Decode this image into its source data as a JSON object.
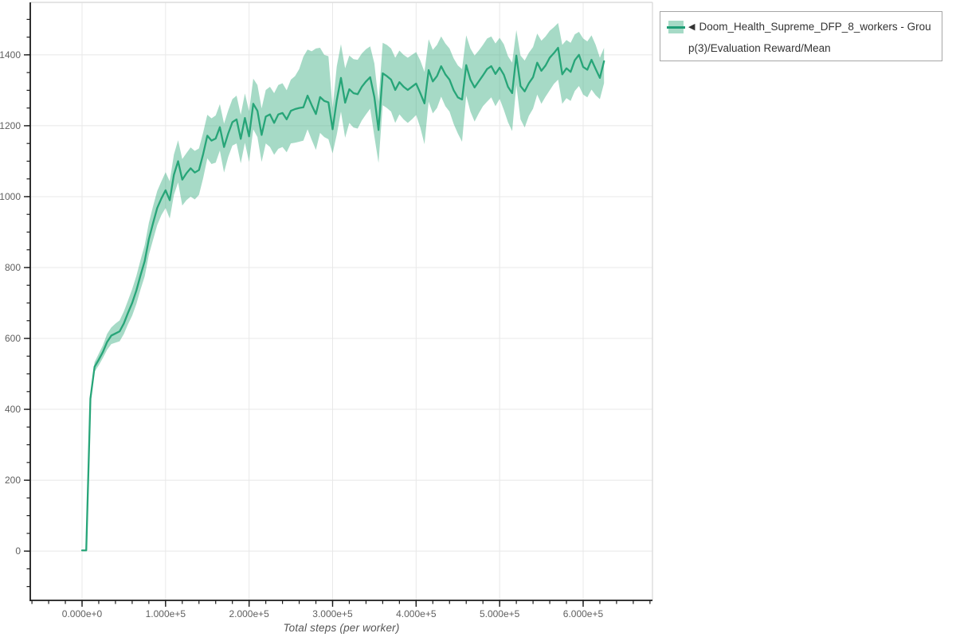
{
  "page": {
    "background": "#ffffff"
  },
  "legend": {
    "triangle_glyph": "◀",
    "label": "Doom_Health_Supreme_DFP_8_workers - Group(3)/Evaluation Reward/Mean",
    "swatch_line_color": "#1f9e76",
    "swatch_fill_color": "#a6dac6",
    "border_color": "#a6a6a6"
  },
  "chart_data": {
    "type": "line",
    "title": "",
    "xlabel": "Total steps (per worker)",
    "ylabel": "",
    "grid": true,
    "legend_position": "top-right-outside",
    "xlim": [
      -62000,
      683000
    ],
    "ylim": [
      -139,
      1548
    ],
    "x_tick_values": [
      0,
      100000,
      200000,
      300000,
      400000,
      500000,
      600000
    ],
    "x_tick_labels": [
      "0.000e+0",
      "1.000e+5",
      "2.000e+5",
      "3.000e+5",
      "4.000e+5",
      "5.000e+5",
      "6.000e+5"
    ],
    "x_minor_step": 20000,
    "y_tick_values": [
      0,
      200,
      400,
      600,
      800,
      1000,
      1200,
      1400
    ],
    "y_minor_step": 50,
    "colors": {
      "line": "#27a578",
      "band": "#2aa876",
      "band_opacity": 0.42,
      "grid": "#e8e8e8",
      "axis": "#1a1a1a",
      "plot_border": "#dcdcdc",
      "tick_label": "#5f5f5f"
    },
    "series": [
      {
        "name": "Doom_Health_Supreme_DFP_8_workers - Group(3)/Evaluation Reward/Mean",
        "points_format": [
          "step",
          "low",
          "mean",
          "high"
        ],
        "points": [
          [
            0,
            2,
            2,
            2
          ],
          [
            5000,
            2,
            2,
            3
          ],
          [
            10000,
            420,
            430,
            442
          ],
          [
            15000,
            506,
            520,
            533
          ],
          [
            20000,
            524,
            540,
            557
          ],
          [
            25000,
            545,
            562,
            581
          ],
          [
            30000,
            568,
            590,
            613
          ],
          [
            35000,
            584,
            608,
            631
          ],
          [
            40000,
            588,
            614,
            642
          ],
          [
            45000,
            592,
            620,
            651
          ],
          [
            50000,
            612,
            642,
            676
          ],
          [
            55000,
            640,
            672,
            707
          ],
          [
            60000,
            664,
            700,
            739
          ],
          [
            65000,
            697,
            735,
            776
          ],
          [
            70000,
            738,
            778,
            821
          ],
          [
            75000,
            775,
            818,
            863
          ],
          [
            80000,
            836,
            880,
            926
          ],
          [
            85000,
            878,
            925,
            973
          ],
          [
            90000,
            920,
            968,
            1016
          ],
          [
            95000,
            948,
            995,
            1043
          ],
          [
            100000,
            968,
            1018,
            1069
          ],
          [
            105000,
            938,
            990,
            1043
          ],
          [
            110000,
            1005,
            1062,
            1119
          ],
          [
            115000,
            1040,
            1100,
            1159
          ],
          [
            120000,
            975,
            1048,
            1106
          ],
          [
            125000,
            990,
            1066,
            1123
          ],
          [
            130000,
            1000,
            1080,
            1139
          ],
          [
            135000,
            992,
            1068,
            1129
          ],
          [
            140000,
            1005,
            1075,
            1136
          ],
          [
            145000,
            1052,
            1120,
            1181
          ],
          [
            150000,
            1108,
            1172,
            1231
          ],
          [
            155000,
            1092,
            1158,
            1221
          ],
          [
            160000,
            1096,
            1164,
            1229
          ],
          [
            165000,
            1130,
            1196,
            1261
          ],
          [
            170000,
            1068,
            1140,
            1206
          ],
          [
            175000,
            1112,
            1178,
            1243
          ],
          [
            180000,
            1144,
            1210,
            1275
          ],
          [
            185000,
            1150,
            1218,
            1285
          ],
          [
            190000,
            1094,
            1163,
            1231
          ],
          [
            195000,
            1152,
            1222,
            1291
          ],
          [
            200000,
            1098,
            1170,
            1241
          ],
          [
            205000,
            1190,
            1262,
            1333
          ],
          [
            210000,
            1168,
            1242,
            1315
          ],
          [
            215000,
            1098,
            1174,
            1249
          ],
          [
            220000,
            1150,
            1226,
            1301
          ],
          [
            225000,
            1140,
            1232,
            1310
          ],
          [
            230000,
            1118,
            1208,
            1292
          ],
          [
            235000,
            1135,
            1232,
            1315
          ],
          [
            240000,
            1140,
            1236,
            1320
          ],
          [
            245000,
            1125,
            1218,
            1300
          ],
          [
            250000,
            1150,
            1242,
            1330
          ],
          [
            255000,
            1152,
            1247,
            1340
          ],
          [
            260000,
            1155,
            1250,
            1360
          ],
          [
            265000,
            1158,
            1252,
            1395
          ],
          [
            270000,
            1190,
            1285,
            1415
          ],
          [
            275000,
            1160,
            1258,
            1410
          ],
          [
            280000,
            1132,
            1233,
            1418
          ],
          [
            285000,
            1180,
            1281,
            1420
          ],
          [
            290000,
            1168,
            1270,
            1400
          ],
          [
            295000,
            1162,
            1266,
            1396
          ],
          [
            300000,
            1122,
            1190,
            1250
          ],
          [
            305000,
            1175,
            1272,
            1368
          ],
          [
            310000,
            1240,
            1335,
            1430
          ],
          [
            315000,
            1166,
            1265,
            1362
          ],
          [
            320000,
            1208,
            1303,
            1398
          ],
          [
            325000,
            1195,
            1292,
            1388
          ],
          [
            330000,
            1192,
            1289,
            1386
          ],
          [
            335000,
            1215,
            1310,
            1404
          ],
          [
            340000,
            1232,
            1325,
            1416
          ],
          [
            345000,
            1248,
            1337,
            1424
          ],
          [
            350000,
            1170,
            1281,
            1376
          ],
          [
            355000,
            1095,
            1188,
            1268
          ],
          [
            360000,
            1258,
            1348,
            1434
          ],
          [
            365000,
            1250,
            1340,
            1428
          ],
          [
            370000,
            1240,
            1330,
            1418
          ],
          [
            375000,
            1208,
            1301,
            1392
          ],
          [
            380000,
            1232,
            1323,
            1412
          ],
          [
            385000,
            1218,
            1310,
            1400
          ],
          [
            390000,
            1208,
            1301,
            1392
          ],
          [
            395000,
            1218,
            1310,
            1400
          ],
          [
            400000,
            1230,
            1319,
            1408
          ],
          [
            405000,
            1195,
            1292,
            1384
          ],
          [
            410000,
            1148,
            1263,
            1352
          ],
          [
            415000,
            1268,
            1357,
            1444
          ],
          [
            420000,
            1235,
            1325,
            1414
          ],
          [
            425000,
            1250,
            1340,
            1428
          ],
          [
            430000,
            1282,
            1368,
            1452
          ],
          [
            435000,
            1255,
            1345,
            1432
          ],
          [
            440000,
            1240,
            1330,
            1418
          ],
          [
            445000,
            1205,
            1300,
            1390
          ],
          [
            450000,
            1178,
            1280,
            1370
          ],
          [
            455000,
            1155,
            1274,
            1360
          ],
          [
            460000,
            1285,
            1371,
            1455
          ],
          [
            465000,
            1240,
            1330,
            1418
          ],
          [
            470000,
            1212,
            1308,
            1398
          ],
          [
            475000,
            1235,
            1325,
            1412
          ],
          [
            480000,
            1255,
            1342,
            1428
          ],
          [
            485000,
            1268,
            1360,
            1446
          ],
          [
            490000,
            1280,
            1368,
            1452
          ],
          [
            495000,
            1255,
            1346,
            1432
          ],
          [
            500000,
            1276,
            1364,
            1448
          ],
          [
            505000,
            1245,
            1344,
            1430
          ],
          [
            510000,
            1210,
            1310,
            1396
          ],
          [
            515000,
            1185,
            1292,
            1378
          ],
          [
            520000,
            1315,
            1398,
            1470
          ],
          [
            525000,
            1218,
            1312,
            1398
          ],
          [
            530000,
            1195,
            1297,
            1384
          ],
          [
            535000,
            1228,
            1320,
            1406
          ],
          [
            540000,
            1248,
            1337,
            1422
          ],
          [
            545000,
            1288,
            1378,
            1460
          ],
          [
            550000,
            1262,
            1355,
            1440
          ],
          [
            555000,
            1282,
            1370,
            1452
          ],
          [
            560000,
            1300,
            1392,
            1468
          ],
          [
            565000,
            1318,
            1405,
            1478
          ],
          [
            570000,
            1330,
            1420,
            1490
          ],
          [
            575000,
            1262,
            1345,
            1428
          ],
          [
            580000,
            1278,
            1362,
            1442
          ],
          [
            585000,
            1270,
            1352,
            1434
          ],
          [
            590000,
            1298,
            1385,
            1458
          ],
          [
            595000,
            1312,
            1400,
            1465
          ],
          [
            600000,
            1288,
            1366,
            1446
          ],
          [
            605000,
            1280,
            1358,
            1438
          ],
          [
            610000,
            1302,
            1386,
            1455
          ],
          [
            615000,
            1286,
            1360,
            1428
          ],
          [
            620000,
            1275,
            1335,
            1392
          ],
          [
            625000,
            1320,
            1382,
            1420
          ]
        ]
      }
    ]
  }
}
